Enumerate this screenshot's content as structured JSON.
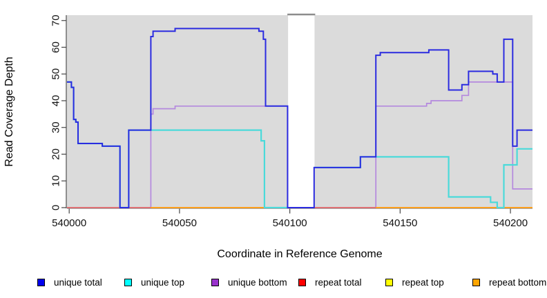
{
  "chart_data": {
    "type": "line",
    "subtype": "step-after",
    "title": "",
    "xlabel": "Coordinate in Reference Genome",
    "ylabel": "Read Coverage Depth",
    "xlim": [
      539999,
      540210
    ],
    "ylim": [
      0,
      72
    ],
    "x_ticks": [
      540000,
      540050,
      540100,
      540150,
      540200
    ],
    "y_ticks": [
      0,
      10,
      20,
      30,
      40,
      50,
      60,
      70
    ],
    "grid": false,
    "plot_background": "#DBDBDB",
    "no_data_gap": {
      "x_start": 540099.2,
      "x_end": 540111.2,
      "border_color": "#8C8C8C"
    },
    "legend_position": "bottom",
    "series": [
      {
        "name": "unique bottom",
        "color": "#B488DE",
        "legend_color": "#9932CC",
        "width": 1.7,
        "segments": [
          [
            [
              539999,
              0
            ],
            [
              540037,
              35
            ],
            [
              540038,
              37
            ],
            [
              540048,
              38
            ],
            [
              540099,
              0
            ],
            [
              540139,
              38
            ],
            [
              540162,
              39
            ],
            [
              540164,
              40
            ],
            [
              540178,
              42
            ],
            [
              540181,
              47
            ],
            [
              540201,
              7
            ],
            [
              540210,
              7
            ]
          ]
        ]
      },
      {
        "name": "repeat top",
        "color": "#F5E52A",
        "legend_color": "#FFFF00",
        "width": 1.5,
        "segments": [
          [
            [
              539999,
              0
            ],
            [
              540210,
              0
            ]
          ]
        ]
      },
      {
        "name": "repeat total",
        "color": "#E0556E",
        "legend_color": "#FF0000",
        "width": 1.5,
        "segments": [
          [
            [
              539999,
              0
            ],
            [
              540210,
              0
            ]
          ]
        ]
      },
      {
        "name": "repeat bottom",
        "color": "#FF9E1B",
        "legend_color": "#FFA500",
        "width": 1.9,
        "segments": [
          [
            [
              540037,
              0
            ],
            [
              540099,
              0
            ]
          ],
          [
            [
              540139,
              0
            ],
            [
              540210,
              0
            ]
          ]
        ]
      },
      {
        "name": "unique top",
        "color": "#4ADADA",
        "legend_color": "#00FFFF",
        "width": 2.2,
        "segments": [
          [
            [
              539999,
              47
            ],
            [
              540001,
              45
            ],
            [
              540002,
              33
            ],
            [
              540003,
              32
            ],
            [
              540004,
              24
            ],
            [
              540015,
              23
            ],
            [
              540023,
              0
            ],
            [
              540027,
              29
            ],
            [
              540087,
              25
            ],
            [
              540088.5,
              0
            ],
            [
              540099,
              0
            ]
          ],
          [
            [
              540111,
              15
            ],
            [
              540132,
              19
            ],
            [
              540139,
              19
            ],
            [
              540172,
              4
            ],
            [
              540191,
              2
            ],
            [
              540194,
              0
            ],
            [
              540197,
              16
            ],
            [
              540203,
              22
            ],
            [
              540210,
              22
            ]
          ]
        ]
      },
      {
        "name": "unique total",
        "color": "#2B2BE0",
        "legend_color": "#0000EE",
        "width": 2,
        "segments": [
          [
            [
              539999,
              47
            ],
            [
              540001,
              45
            ],
            [
              540002,
              33
            ],
            [
              540003,
              32
            ],
            [
              540004,
              24
            ],
            [
              540015,
              23
            ],
            [
              540023,
              0
            ],
            [
              540027,
              29
            ],
            [
              540037,
              64
            ],
            [
              540038,
              66
            ],
            [
              540048,
              67
            ],
            [
              540086,
              66
            ],
            [
              540088,
              63
            ],
            [
              540089,
              38
            ],
            [
              540099,
              0
            ],
            [
              540111,
              15
            ],
            [
              540132,
              19
            ],
            [
              540139,
              57
            ],
            [
              540141,
              58
            ],
            [
              540163,
              59
            ],
            [
              540172,
              44
            ],
            [
              540178,
              46
            ],
            [
              540181,
              51
            ],
            [
              540192,
              50
            ],
            [
              540194,
              47
            ],
            [
              540197,
              63
            ],
            [
              540201,
              23
            ],
            [
              540203,
              29
            ],
            [
              540210,
              29
            ]
          ]
        ]
      }
    ]
  },
  "axes": {
    "y_title": "Read Coverage Depth",
    "x_title": "Coordinate in Reference Genome"
  },
  "legend": {
    "items": [
      {
        "label": "unique total",
        "color": "#0000EE"
      },
      {
        "label": "unique top",
        "color": "#00FFFF"
      },
      {
        "label": "unique bottom",
        "color": "#9932CC"
      },
      {
        "label": "repeat total",
        "color": "#FF0000"
      },
      {
        "label": "repeat top",
        "color": "#FFFF00"
      },
      {
        "label": "repeat bottom",
        "color": "#FFA500"
      }
    ]
  }
}
